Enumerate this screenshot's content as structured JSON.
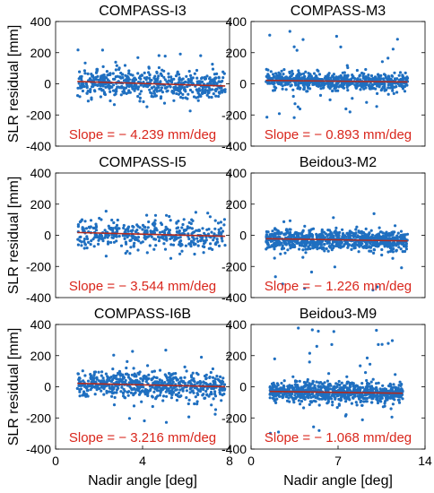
{
  "figure": {
    "shared_ylabel": "SLR residual [mm]",
    "shared_xlabel": "Nadir angle [deg]"
  },
  "colors": {
    "points": "#1f6fc0",
    "fit_line": "#b02a1e",
    "slope_text": "#d9261c",
    "axis": "#000000"
  },
  "chart_data": [
    {
      "type": "scatter",
      "title": "COMPASS-I3",
      "ylabel": "SLR residual [mm]",
      "xlabel": "",
      "xlim": [
        0,
        8
      ],
      "ylim": [
        -400,
        400
      ],
      "yticks": [
        -400,
        -200,
        0,
        200,
        400
      ],
      "xticks": [],
      "grid": false,
      "legend": "none",
      "x_range": [
        1.0,
        7.8
      ],
      "y_spread": 45,
      "point_count": 560,
      "outlier_range": [
        -190,
        230
      ],
      "fit": {
        "slope": -4.239,
        "intercept": 15,
        "x_start": 1.0,
        "x_end": 7.8
      },
      "annotation": "Slope = − 4.239 mm/deg"
    },
    {
      "type": "scatter",
      "title": "COMPASS-M3",
      "ylabel": "",
      "xlabel": "",
      "xlim": [
        0,
        14
      ],
      "ylim": [
        -400,
        400
      ],
      "yticks": [
        -400,
        -200,
        0,
        200,
        400
      ],
      "xticks": [],
      "grid": false,
      "legend": "none",
      "x_range": [
        1.2,
        12.6
      ],
      "y_spread": 28,
      "point_count": 700,
      "outlier_range": [
        -230,
        340
      ],
      "fit": {
        "slope": -0.893,
        "intercept": 22,
        "x_start": 1.2,
        "x_end": 12.6
      },
      "annotation": "Slope = − 0.893 mm/deg"
    },
    {
      "type": "scatter",
      "title": "COMPASS-I5",
      "ylabel": "SLR residual [mm]",
      "xlabel": "",
      "xlim": [
        0,
        8
      ],
      "ylim": [
        -400,
        400
      ],
      "yticks": [
        -400,
        -200,
        0,
        200,
        400
      ],
      "xticks": [],
      "grid": false,
      "legend": "none",
      "x_range": [
        1.0,
        7.8
      ],
      "y_spread": 48,
      "point_count": 420,
      "outlier_range": [
        -160,
        160
      ],
      "fit": {
        "slope": -3.544,
        "intercept": 18,
        "x_start": 1.0,
        "x_end": 7.8
      },
      "annotation": "Slope = − 3.544 mm/deg"
    },
    {
      "type": "scatter",
      "title": "Beidou3-M2",
      "ylabel": "",
      "xlabel": "",
      "xlim": [
        0,
        14
      ],
      "ylim": [
        -400,
        400
      ],
      "yticks": [
        -400,
        -200,
        0,
        200,
        400
      ],
      "xticks": [],
      "grid": false,
      "legend": "none",
      "x_range": [
        1.2,
        12.6
      ],
      "y_spread": 32,
      "point_count": 900,
      "outlier_range": [
        -380,
        140
      ],
      "fit": {
        "slope": -1.226,
        "intercept": -22,
        "x_start": 1.2,
        "x_end": 12.6
      },
      "annotation": "Slope = − 1.226 mm/deg"
    },
    {
      "type": "scatter",
      "title": "COMPASS-I6B",
      "ylabel": "SLR residual [mm]",
      "xlabel": "Nadir angle [deg]",
      "xlim": [
        0,
        8
      ],
      "ylim": [
        -400,
        400
      ],
      "yticks": [
        -400,
        -200,
        0,
        200,
        400
      ],
      "xticks": [
        0,
        4,
        8
      ],
      "grid": false,
      "legend": "none",
      "x_range": [
        1.0,
        7.8
      ],
      "y_spread": 42,
      "point_count": 620,
      "outlier_range": [
        -250,
        330
      ],
      "fit": {
        "slope": -3.216,
        "intercept": 22,
        "x_start": 1.0,
        "x_end": 7.8
      },
      "annotation": "Slope = − 3.216 mm/deg"
    },
    {
      "type": "scatter",
      "title": "Beidou3-M9",
      "ylabel": "",
      "xlabel": "Nadir angle [deg]",
      "xlim": [
        0,
        14
      ],
      "ylim": [
        -400,
        400
      ],
      "yticks": [
        -400,
        -200,
        0,
        200,
        400
      ],
      "xticks": [
        0,
        7,
        14
      ],
      "grid": false,
      "legend": "none",
      "x_range": [
        1.5,
        12.2
      ],
      "y_spread": 34,
      "point_count": 800,
      "outlier_range": [
        -310,
        380
      ],
      "fit": {
        "slope": -1.068,
        "intercept": -30,
        "x_start": 1.5,
        "x_end": 12.2
      },
      "annotation": "Slope = − 1.068 mm/deg"
    }
  ]
}
